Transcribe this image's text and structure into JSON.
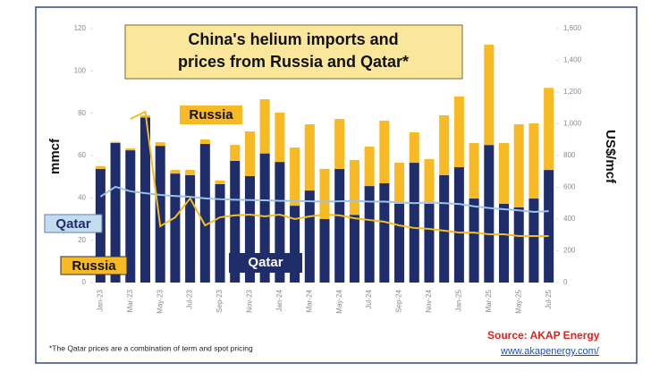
{
  "chart_data": {
    "type": "bar",
    "stacked": true,
    "title": [
      "China's helium imports and",
      "prices from Russia and Qatar*"
    ],
    "y_label": "mmcf",
    "y2_label": "US$/mcf",
    "footnote": "*The Qatar prices are a combination of term and spot pricing",
    "source": "Source: AKAP Energy",
    "link": "www.akapenergy.com/",
    "categories": [
      "Jan-23",
      null,
      "Mar-23",
      null,
      "May-23",
      null,
      "Jul-23",
      null,
      "Sep-23",
      null,
      "Nov-23",
      null,
      "Jan-24",
      null,
      "Mar-24",
      null,
      "May-24",
      null,
      "Jul-24",
      null,
      "Sep-24",
      null,
      "Nov-24",
      null,
      "Jan-25",
      null,
      "Mar-25",
      null,
      "May-25",
      null,
      "Jul-25"
    ],
    "series": [
      {
        "name": "Qatar",
        "type": "bar",
        "color": "#1f2d6b",
        "values": [
          53.7,
          66,
          62.5,
          78,
          64.6,
          51.5,
          50.7,
          65.5,
          46.5,
          57.5,
          50.3,
          61,
          57,
          36.3,
          43.5,
          30,
          53.7,
          32,
          45.6,
          46.9,
          37.2,
          56.6,
          37.2,
          50.7,
          54.5,
          39.7,
          65,
          37.2,
          35.5,
          39.7,
          53.2
        ]
      },
      {
        "name": "Russia",
        "type": "bar",
        "color": "#f7b924",
        "values": [
          1.3,
          0.5,
          0.9,
          1,
          1.7,
          1.7,
          2.5,
          2.1,
          1.7,
          7.5,
          21.1,
          25.6,
          23.3,
          27.5,
          31.3,
          23.7,
          23.6,
          25.9,
          18.6,
          29.6,
          19.4,
          14.4,
          21.1,
          28.3,
          33.4,
          26.2,
          47.4,
          28.7,
          39.3,
          35.5,
          38.8
        ]
      },
      {
        "name": "Qatar",
        "type": "line",
        "axis": "y2",
        "color": "#9dc3e6",
        "values": [
          541,
          603,
          575,
          563,
          552,
          545,
          540,
          530,
          525,
          522,
          520,
          518,
          515,
          515,
          512,
          510,
          512,
          515,
          510,
          510,
          505,
          500,
          505,
          500,
          495,
          480,
          470,
          462,
          455,
          445,
          450
        ]
      },
      {
        "name": "Russia",
        "type": "line",
        "axis": "y2",
        "color": "#f2bd1d",
        "values": [
          null,
          null,
          1031,
          1076,
          355,
          411,
          530,
          360,
          411,
          423,
          428,
          417,
          428,
          400,
          417,
          428,
          423,
          405,
          394,
          383,
          360,
          344,
          338,
          327,
          315,
          315,
          304,
          304,
          293,
          293,
          293
        ]
      }
    ],
    "ylim": [
      0,
      120
    ],
    "yticks": [
      0,
      20,
      40,
      60,
      80,
      100,
      120
    ],
    "y2lim": [
      0,
      1600
    ],
    "y2ticks": [
      0,
      200,
      400,
      600,
      800,
      {
        "value": 1000,
        "label": "1,000"
      },
      {
        "value": 1200,
        "label": "1,200"
      },
      {
        "value": 1400,
        "label": "1,400"
      },
      {
        "value": 1600,
        "label": "1,600"
      }
    ]
  }
}
